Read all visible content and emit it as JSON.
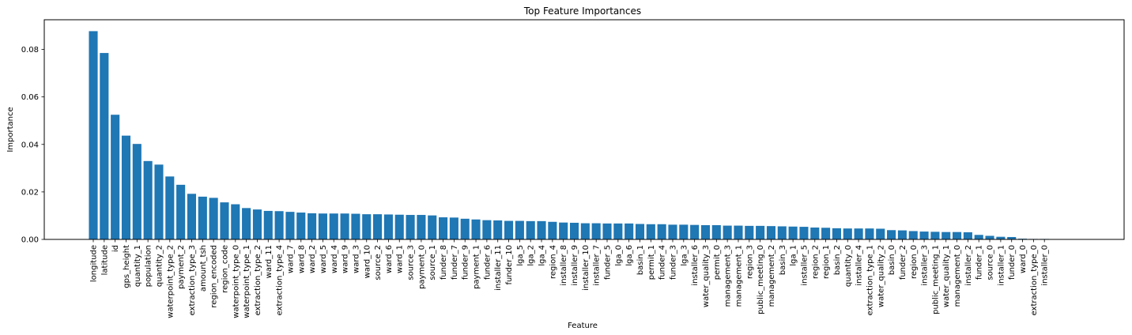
{
  "chart_data": {
    "type": "bar",
    "title": "Top Feature Importances",
    "xlabel": "Feature",
    "ylabel": "Importance",
    "ylim": [
      0,
      0.0925
    ],
    "yticks": [
      0.0,
      0.02,
      0.04,
      0.06,
      0.08
    ],
    "ytick_labels": [
      "0.00",
      "0.02",
      "0.04",
      "0.06",
      "0.08"
    ],
    "grid": false,
    "bar_color": "#1f77b4",
    "categories": [
      "longitude",
      "latitude",
      "id",
      "gps_height",
      "quantity_1",
      "population",
      "quantity_2",
      "waterpoint_type_2",
      "payment_2",
      "extraction_type_3",
      "amount_tsh",
      "region_encoded",
      "region_code",
      "waterpoint_type_0",
      "waterpoint_type_1",
      "extraction_type_2",
      "ward_11",
      "extraction_type_4",
      "ward_7",
      "ward_8",
      "ward_2",
      "ward_5",
      "ward_4",
      "ward_9",
      "ward_3",
      "ward_10",
      "source_2",
      "ward_6",
      "ward_1",
      "source_3",
      "payment_0",
      "source_1",
      "funder_8",
      "funder_7",
      "funder_9",
      "payment_1",
      "funder_6",
      "installer_11",
      "funder_10",
      "lga_5",
      "lga_2",
      "lga_4",
      "region_4",
      "installer_8",
      "installer_9",
      "installer_10",
      "installer_7",
      "funder_5",
      "lga_0",
      "lga_6",
      "basin_1",
      "permit_1",
      "funder_4",
      "funder_3",
      "lga_3",
      "installer_6",
      "water_quality_3",
      "permit_0",
      "management_3",
      "management_1",
      "region_3",
      "public_meeting_0",
      "management_2",
      "basin_3",
      "lga_1",
      "installer_5",
      "region_2",
      "region_1",
      "basin_2",
      "quantity_0",
      "installer_4",
      "extraction_type_1",
      "water_quality_2",
      "basin_0",
      "funder_2",
      "region_0",
      "installer_3",
      "public_meeting_1",
      "water_quality_1",
      "management_0",
      "installer_2",
      "funder_1",
      "source_0",
      "installer_1",
      "funder_0",
      "ward_0",
      "extraction_type_0",
      "installer_0"
    ],
    "values": [
      0.0877,
      0.0785,
      0.0525,
      0.0437,
      0.0402,
      0.033,
      0.0315,
      0.0265,
      0.023,
      0.0192,
      0.018,
      0.0175,
      0.0156,
      0.0148,
      0.0132,
      0.0126,
      0.012,
      0.0119,
      0.0116,
      0.0113,
      0.011,
      0.0109,
      0.0109,
      0.0109,
      0.0108,
      0.0106,
      0.0106,
      0.0105,
      0.0104,
      0.0103,
      0.0103,
      0.0101,
      0.0093,
      0.0092,
      0.0087,
      0.0084,
      0.0081,
      0.008,
      0.0078,
      0.0078,
      0.0077,
      0.0077,
      0.0074,
      0.0071,
      0.007,
      0.0068,
      0.0068,
      0.0067,
      0.0067,
      0.0067,
      0.0065,
      0.0064,
      0.0064,
      0.0062,
      0.0062,
      0.0061,
      0.006,
      0.006,
      0.0058,
      0.0058,
      0.0057,
      0.0057,
      0.0056,
      0.0055,
      0.0054,
      0.0053,
      0.005,
      0.0049,
      0.0047,
      0.0046,
      0.0046,
      0.0046,
      0.0045,
      0.0039,
      0.0038,
      0.0035,
      0.0033,
      0.0032,
      0.0031,
      0.0031,
      0.003,
      0.0019,
      0.0015,
      0.0011,
      0.001,
      0.0003,
      0.0002,
      0.0002
    ]
  }
}
